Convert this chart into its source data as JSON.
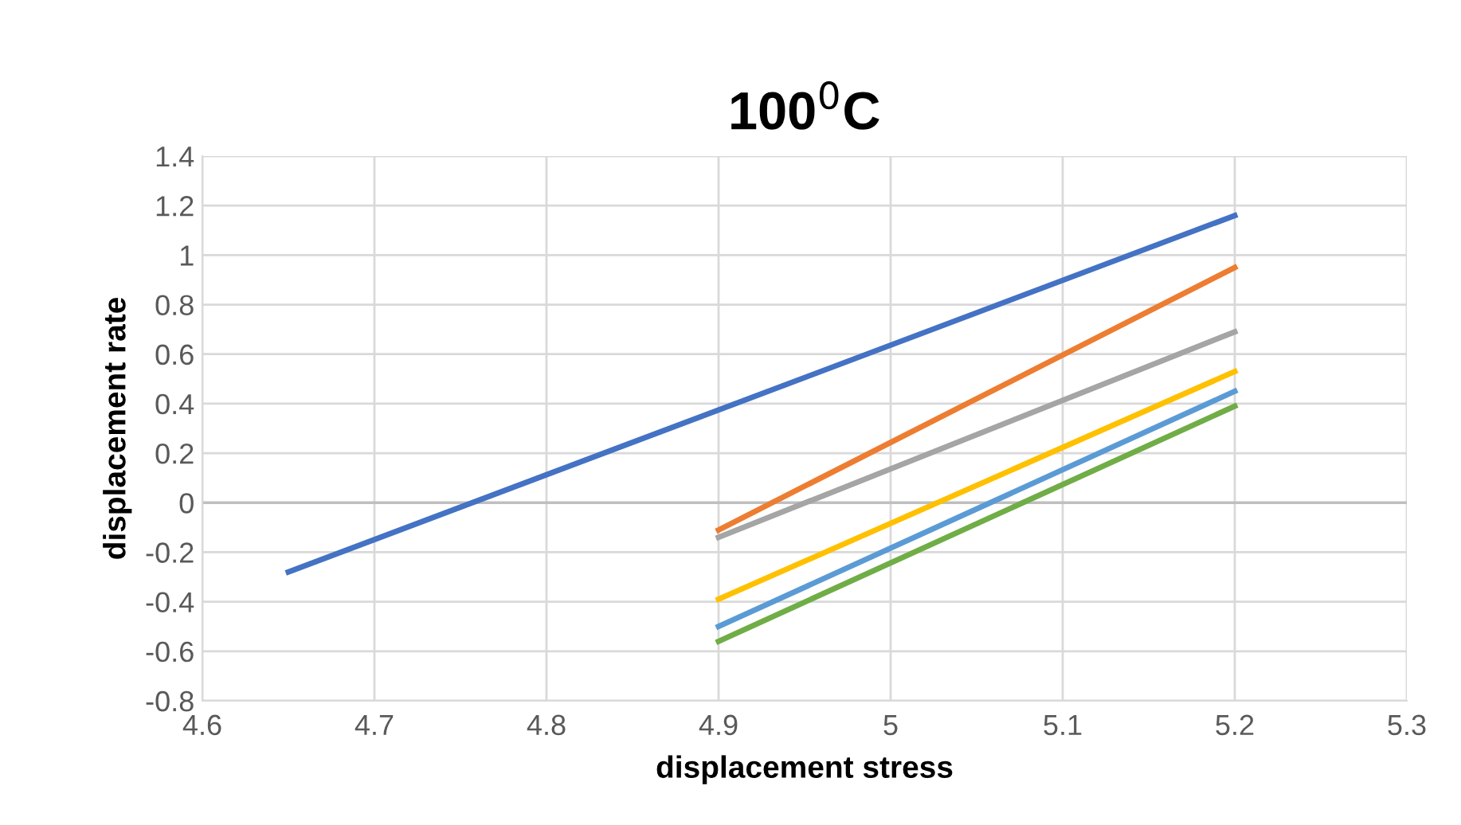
{
  "chart_data": {
    "type": "line",
    "title": "100$^{0}$C",
    "xlabel": "displacement stress",
    "ylabel": "displacement rate",
    "xlim": [
      4.6,
      5.3
    ],
    "xticks": [
      4.6,
      4.7,
      4.8,
      4.9,
      5,
      5.1,
      5.2,
      5.3
    ],
    "ylim": [
      -0.8,
      1.4
    ],
    "yticks": [
      -0.8,
      -0.6,
      -0.4,
      -0.2,
      0,
      0.2,
      0.4,
      0.6,
      0.8,
      1,
      1.2,
      1.4
    ],
    "grid": true,
    "marker": "none",
    "line_style": "solid",
    "series": [
      {
        "color": "#4472c4",
        "x": [
          4.65,
          5.2
        ],
        "values": [
          -0.28,
          1.16
        ]
      },
      {
        "color": "#ed7d31",
        "x": [
          4.9,
          5.2
        ],
        "values": [
          -0.11,
          0.95
        ]
      },
      {
        "color": "#a5a5a5",
        "x": [
          4.9,
          5.2
        ],
        "values": [
          -0.14,
          0.69
        ]
      },
      {
        "color": "#ffc000",
        "x": [
          4.9,
          5.2
        ],
        "values": [
          -0.39,
          0.53
        ]
      },
      {
        "color": "#5b9bd5",
        "x": [
          4.9,
          5.2
        ],
        "values": [
          -0.5,
          0.45
        ]
      },
      {
        "color": "#70ad47",
        "x": [
          4.9,
          5.2
        ],
        "values": [
          -0.56,
          0.39
        ]
      }
    ]
  }
}
